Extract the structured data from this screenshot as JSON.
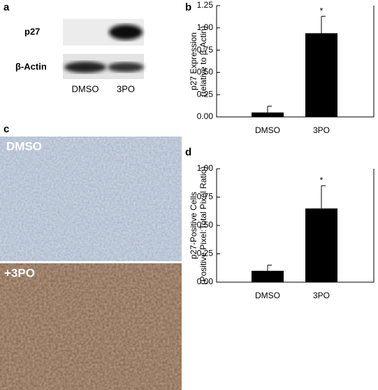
{
  "figure": {
    "panel_labels": [
      "a",
      "b",
      "c",
      "d"
    ],
    "blot": {
      "rows": [
        "p27",
        "β-Actin"
      ],
      "lanes": [
        "DMSO",
        "3PO"
      ]
    },
    "images": [
      "DMSO",
      "+3PO"
    ]
  },
  "chart_data": [
    {
      "type": "bar",
      "ylabel": [
        "p27 Expression",
        "(relative to β-Actin)"
      ],
      "categories": [
        "DMSO",
        "3PO"
      ],
      "values": [
        0.05,
        0.94
      ],
      "errors": [
        0.07,
        0.19
      ],
      "annotations": [
        null,
        "*"
      ],
      "color": "#000000",
      "ylim": [
        0,
        1.25
      ],
      "yticks": [
        {
          "value": 0,
          "label": "0.00"
        },
        {
          "value": 0.25,
          "label": "0.25"
        },
        {
          "value": 0.5,
          "label": "0.50"
        },
        {
          "value": 0.75,
          "label": "0.75"
        },
        {
          "value": 1,
          "label": "1.00"
        },
        {
          "value": 1.25,
          "label": "1.25"
        }
      ],
      "grid": false
    },
    {
      "type": "bar",
      "ylabel": [
        "p27-Positive Cells",
        "(Positive Pixel:Total Pixel Ratio)"
      ],
      "categories": [
        "DMSO",
        "3PO"
      ],
      "values": [
        0.1,
        0.65
      ],
      "errors": [
        0.05,
        0.2
      ],
      "annotations": [
        null,
        "*"
      ],
      "color": "#000000",
      "ylim": [
        0,
        1
      ],
      "yticks": [
        {
          "value": 0,
          "label": "0.00"
        },
        {
          "value": 0.25,
          "label": "0.25"
        },
        {
          "value": 0.5,
          "label": "0.50"
        },
        {
          "value": 0.75,
          "label": "0.75"
        },
        {
          "value": 1,
          "label": "1.00"
        }
      ],
      "grid": false
    }
  ]
}
